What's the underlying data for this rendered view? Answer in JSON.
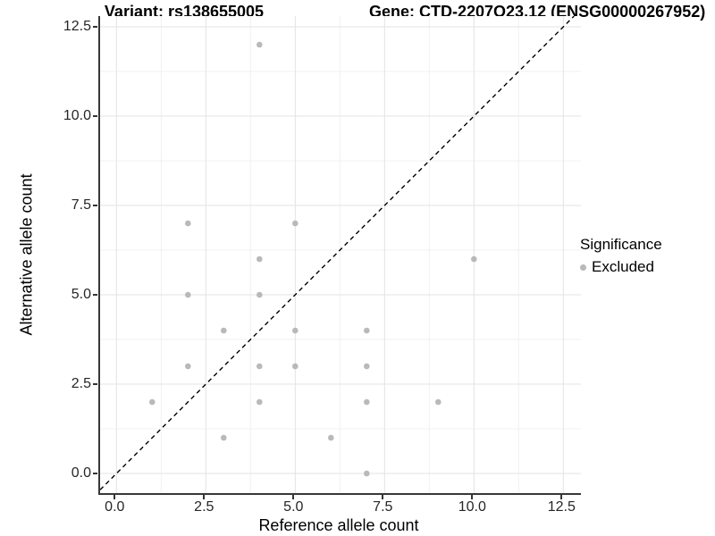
{
  "colors": {
    "point": "#b9b9b9",
    "grid_major": "#e3e3e3",
    "grid_minor": "#f1f1f1",
    "axis_line": "#383838",
    "reference_line": "#000000"
  },
  "chart_data": {
    "type": "scatter",
    "title_variant": "Variant: rs138655005",
    "title_gene": "Gene: CTD-2207O23.12 (ENSG00000267952)",
    "xlabel": "Reference allele count",
    "ylabel": "Alternative allele count",
    "xlim": [
      0,
      12.5
    ],
    "ylim": [
      0,
      12.5
    ],
    "xticks": [
      0,
      2.5,
      5,
      7.5,
      10,
      12.5
    ],
    "yticks": [
      0,
      2.5,
      5,
      7.5,
      10,
      12.5
    ],
    "grid": "major and minor gridlines, light grey on white",
    "reference_line": {
      "type": "identity y=x",
      "style": "dashed",
      "color": "#000000"
    },
    "legend": {
      "title": "Significance",
      "position": "right",
      "items": [
        {
          "label": "Excluded",
          "color": "#b9b9b9"
        }
      ]
    },
    "series": [
      {
        "name": "Excluded",
        "color": "#b9b9b9",
        "points": [
          [
            1,
            2
          ],
          [
            2,
            3
          ],
          [
            2,
            5
          ],
          [
            2,
            7
          ],
          [
            3,
            1
          ],
          [
            3,
            4
          ],
          [
            4,
            2
          ],
          [
            4,
            3
          ],
          [
            4,
            5
          ],
          [
            4,
            6
          ],
          [
            4,
            12
          ],
          [
            5,
            3
          ],
          [
            5,
            4
          ],
          [
            5,
            7
          ],
          [
            6,
            1
          ],
          [
            7,
            0
          ],
          [
            7,
            2
          ],
          [
            7,
            3
          ],
          [
            7,
            4
          ],
          [
            9,
            2
          ],
          [
            10,
            6
          ]
        ]
      }
    ]
  }
}
